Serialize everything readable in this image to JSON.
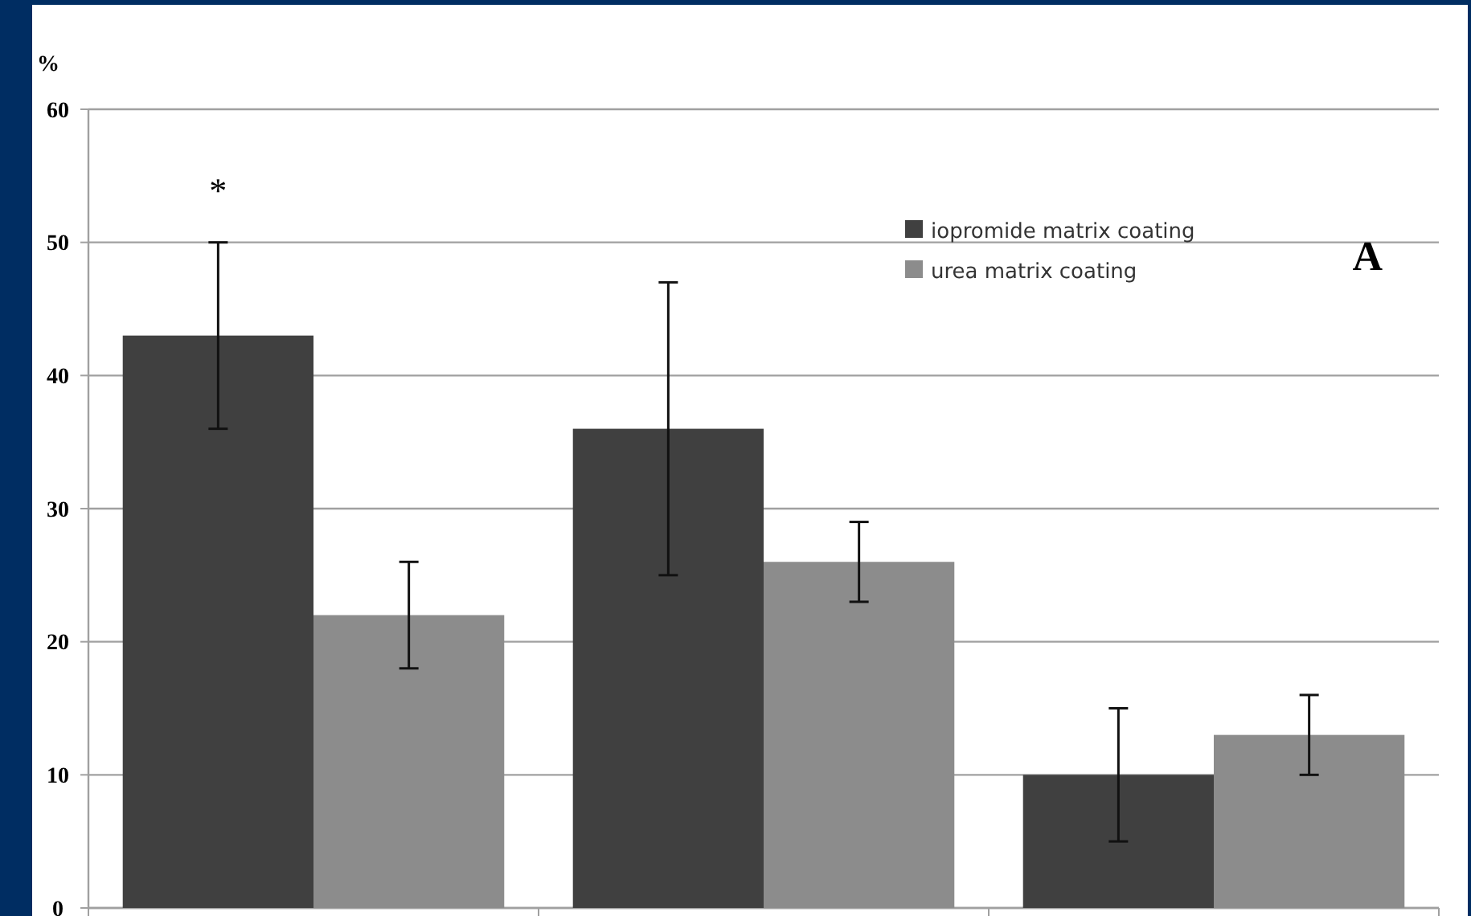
{
  "chart_data": {
    "type": "bar",
    "ylabel": "%",
    "categories": [
      null,
      null,
      null
    ],
    "series": [
      {
        "name": "iopromide matrix coating",
        "color": "#404040",
        "values": [
          43,
          36,
          10
        ],
        "errors": [
          [
            36,
            50
          ],
          [
            25,
            47
          ],
          [
            5,
            15
          ]
        ]
      },
      {
        "name": "urea matrix coating",
        "color": "#8c8c8c",
        "values": [
          22,
          26,
          13
        ],
        "errors": [
          [
            18,
            26
          ],
          [
            23,
            29
          ],
          [
            10,
            16
          ]
        ]
      }
    ],
    "ylim": [
      0,
      60
    ],
    "yticks": [
      0,
      10,
      20,
      30,
      40,
      50,
      60
    ],
    "grid": "y",
    "legend": "top right",
    "annotations": [
      "*",
      "A"
    ]
  }
}
